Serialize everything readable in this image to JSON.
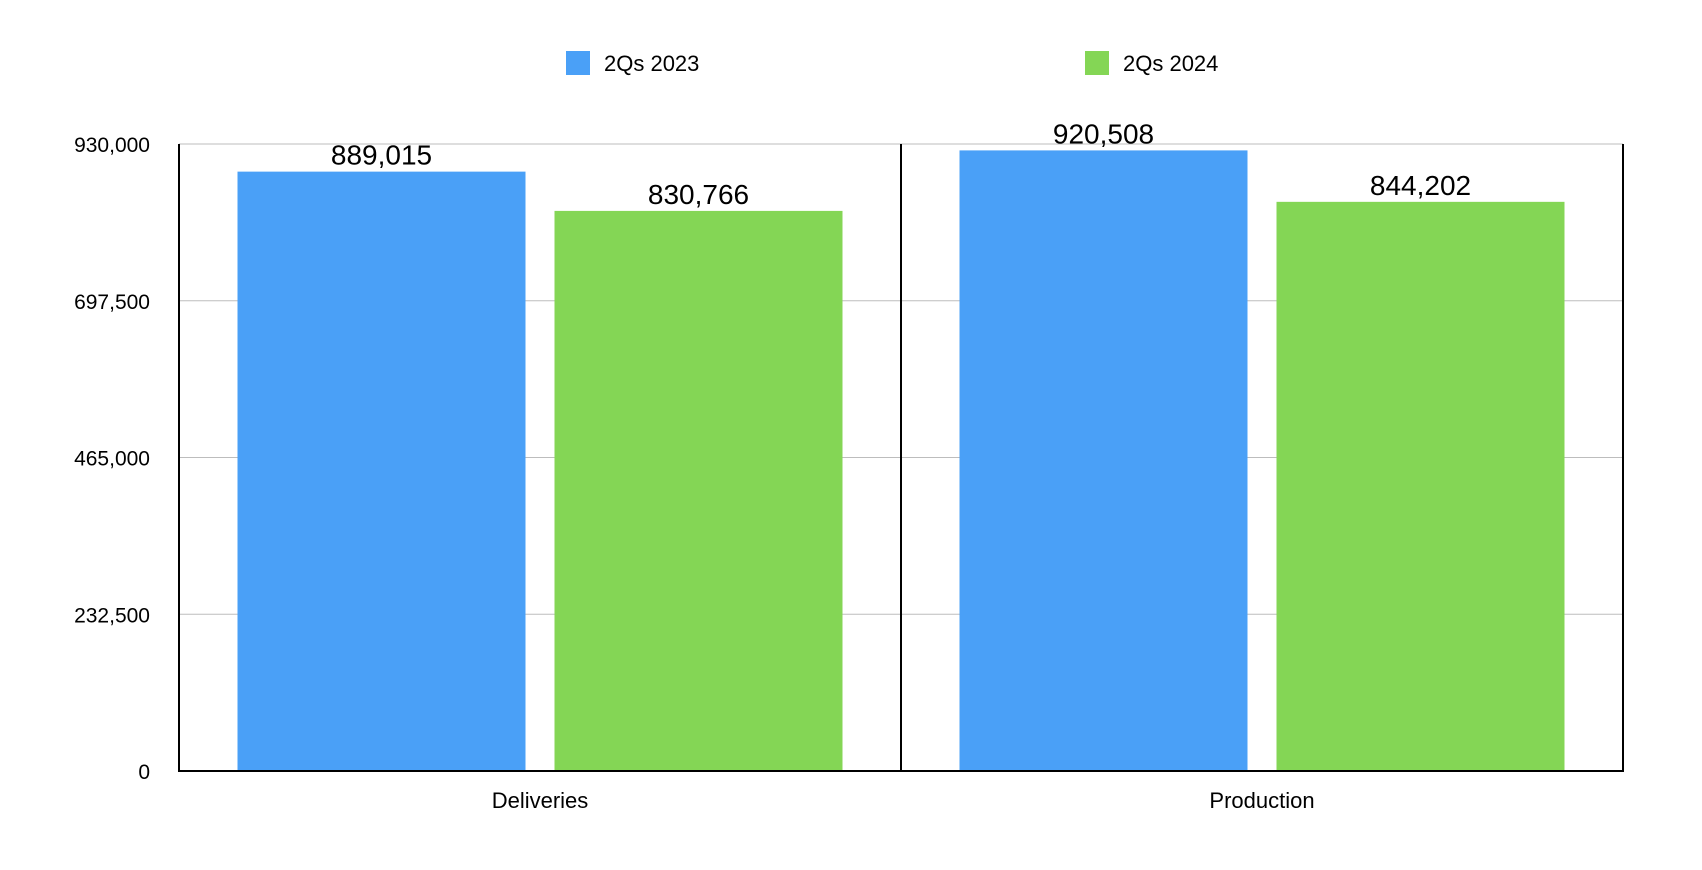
{
  "chart_data": {
    "type": "bar",
    "categories": [
      "Deliveries",
      "Production"
    ],
    "series": [
      {
        "name": "2Qs 2023",
        "values": [
          889015,
          920508
        ],
        "color": "#4aa0f7"
      },
      {
        "name": "2Qs 2024",
        "values": [
          830766,
          844202
        ],
        "color": "#84d655"
      }
    ],
    "data_labels": [
      [
        "889,015",
        "920,508"
      ],
      [
        "830,766",
        "844,202"
      ]
    ],
    "yticks": [
      0,
      232500,
      465000,
      697500,
      930000
    ],
    "ytick_labels": [
      "0",
      "232,500",
      "465,000",
      "697,500",
      "930,000"
    ],
    "ylim": [
      0,
      930000
    ],
    "grid": true,
    "legend_position": "top",
    "title": "",
    "xlabel": "",
    "ylabel": ""
  }
}
